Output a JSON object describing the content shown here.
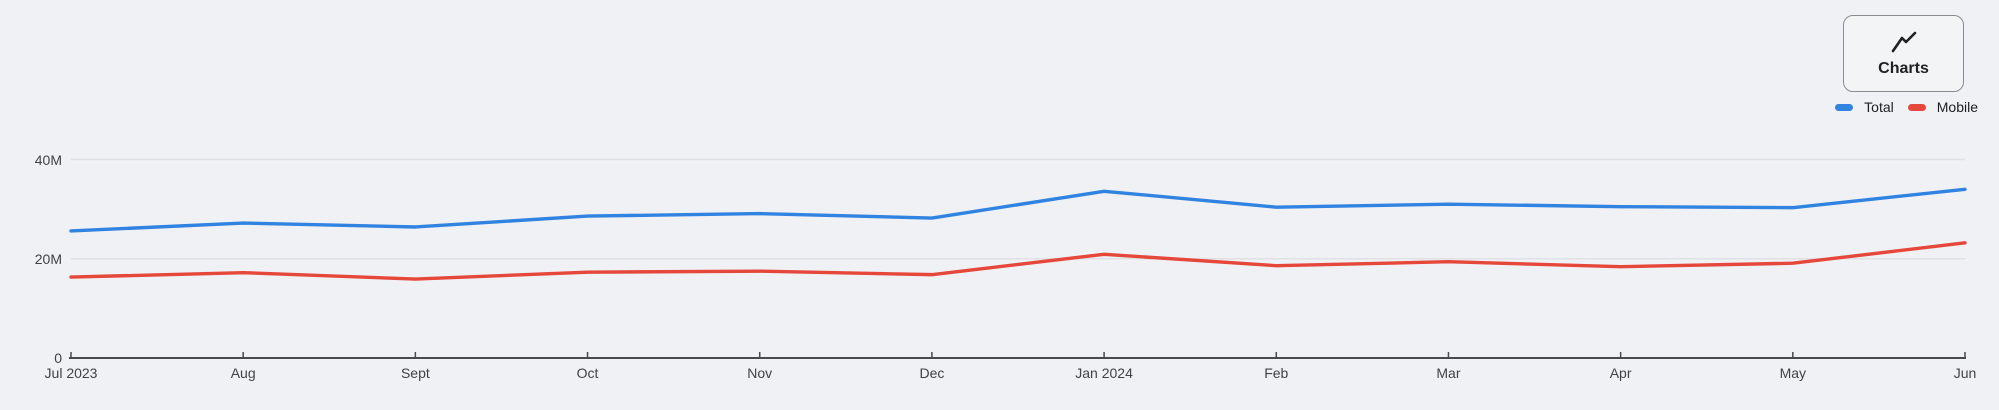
{
  "page": {
    "background_color": "#f0f1f4",
    "gridline_color": "#dfe1e4",
    "axis_color": "#47494c",
    "label_color": "#3f4246"
  },
  "toolbar": {
    "charts_button": {
      "label": "Charts",
      "icon": "line-chart-icon"
    }
  },
  "legend": {
    "items": [
      {
        "label": "Total",
        "color": "#3083e0"
      },
      {
        "label": "Mobile",
        "color": "#e5473a"
      }
    ]
  },
  "chart_data": {
    "type": "line",
    "title": "",
    "xlabel": "",
    "ylabel": "",
    "categories": [
      "Jul 2023",
      "Aug",
      "Sept",
      "Oct",
      "Nov",
      "Dec",
      "Jan 2024",
      "Feb",
      "Mar",
      "Apr",
      "May",
      "Jun"
    ],
    "series": [
      {
        "name": "Total",
        "color": "#3083e0",
        "values": [
          25600000,
          27200000,
          26400000,
          28600000,
          29100000,
          28200000,
          33600000,
          30400000,
          31000000,
          30500000,
          30300000,
          34000000
        ]
      },
      {
        "name": "Mobile",
        "color": "#e5473a",
        "values": [
          16300000,
          17200000,
          15900000,
          17300000,
          17500000,
          16800000,
          20900000,
          18600000,
          19400000,
          18400000,
          19100000,
          23200000
        ]
      }
    ],
    "ylim": [
      0,
      40000000
    ],
    "yticks": [
      {
        "value": 0,
        "label": "0"
      },
      {
        "value": 20000000,
        "label": "20M"
      },
      {
        "value": 40000000,
        "label": "40M"
      }
    ],
    "grid": true,
    "legend_position": "top-right"
  }
}
